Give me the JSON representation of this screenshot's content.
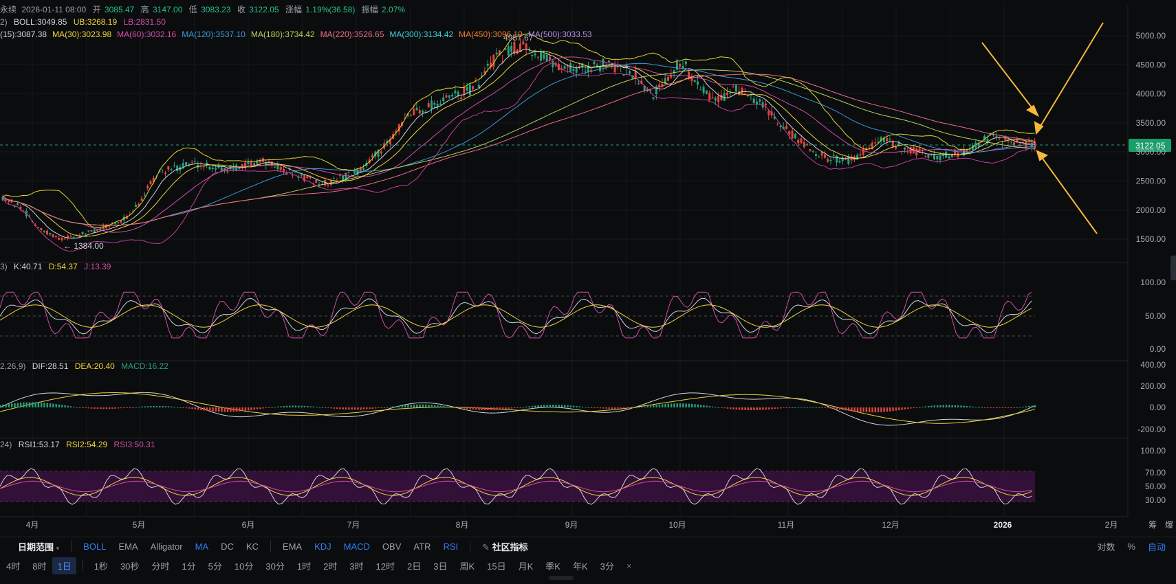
{
  "header": {
    "line1": {
      "prefix": "永续",
      "date": "2026-01-11 08:00",
      "open_label": "开",
      "open": "3085.47",
      "high_label": "高",
      "high": "3147.00",
      "low_label": "低",
      "low": "3083.23",
      "close_label": "收",
      "close": "3122.05",
      "chg_label": "涨幅",
      "chg": "1.19%(36.58)",
      "amp_label": "振幅",
      "amp": "2.07%"
    },
    "boll": {
      "prefix": "2)",
      "mid": "BOLL:3049.85",
      "ub": "UB:3268.19",
      "lb": "LB:2831.50"
    },
    "ma": [
      {
        "label": "(15):3087.38",
        "color": "#d1d4d9"
      },
      {
        "label": "MA(30):3023.98",
        "color": "#f0d43a"
      },
      {
        "label": "MA(60):3032.16",
        "color": "#d24ea8"
      },
      {
        "label": "MA(120):3537.10",
        "color": "#3a9ad9"
      },
      {
        "label": "MA(180):3734.42",
        "color": "#b9d05c"
      },
      {
        "label": "MA(220):3526.65",
        "color": "#ec6d88"
      },
      {
        "label": "MA(300):3134.42",
        "color": "#3fd0d8"
      },
      {
        "label": "MA(450):3096.10",
        "color": "#ef7d2a"
      },
      {
        "label": "MA(500):3033.53",
        "color": "#b08de3"
      }
    ]
  },
  "price_annotations": {
    "high": "4957.67",
    "low": "← 1384.00",
    "current": "3122.05"
  },
  "kdj": {
    "prefix": "3)",
    "k": "K:40.71",
    "d": "D:54.37",
    "j": "J:13.39"
  },
  "macd": {
    "prefix": "2,26,9)",
    "dif": "DIF:28.51",
    "dea": "DEA:20.40",
    "macd": "MACD:16.22"
  },
  "rsi": {
    "prefix": "24)",
    "rsi1": "RSI1:53.17",
    "rsi2": "RSI2:54.29",
    "rsi3": "RSI3:50.31"
  },
  "axes": {
    "price_ticks": [
      "5000.00",
      "4500.00",
      "4000.00",
      "3500.00",
      "3000.00",
      "2500.00",
      "2000.00",
      "1500.00"
    ],
    "kdj_ticks": [
      "100.00",
      "50.00",
      "0.00"
    ],
    "macd_ticks": [
      "400.00",
      "200.00",
      "0.00",
      "-200.00"
    ],
    "rsi_ticks": [
      "100.00",
      "70.00",
      "50.00",
      "30.00"
    ],
    "months": [
      "4月",
      "5月",
      "6月",
      "7月",
      "8月",
      "9月",
      "10月",
      "11月",
      "12月",
      "2026",
      "2月"
    ],
    "corner": [
      "筹",
      "爆"
    ]
  },
  "colors": {
    "up": "#26a17b",
    "down": "#e0463c",
    "accent": "#2f7ff5",
    "arrow": "#f5b83a",
    "rsi_band": "#3a1240",
    "price_badge": "#1a9e6a"
  },
  "toolbar1": {
    "range_label": "日期范围",
    "main_indicators": [
      "BOLL",
      "EMA",
      "Alligator",
      "MA",
      "DC",
      "KC"
    ],
    "main_active": [
      "BOLL",
      "MA"
    ],
    "sub_indicators": [
      "EMA",
      "KDJ",
      "MACD",
      "OBV",
      "ATR",
      "RSI"
    ],
    "sub_active": [
      "KDJ",
      "MACD",
      "RSI"
    ],
    "community": "社区指标",
    "right": [
      "对数",
      "%",
      "自动"
    ]
  },
  "toolbar2": {
    "intervals": [
      "4时",
      "8时",
      "1日",
      "1秒",
      "30秒",
      "分时",
      "1分",
      "5分",
      "10分",
      "30分",
      "1时",
      "2时",
      "3时",
      "12时",
      "2日",
      "3日",
      "周K",
      "15日",
      "月K",
      "季K",
      "年K",
      "3分"
    ],
    "selected": "1日",
    "close": "×"
  },
  "chart_data": {
    "type": "candlestick",
    "price_range": [
      1384.0,
      4957.67
    ],
    "last_close": 3122.05,
    "rsi_band": [
      30,
      70
    ],
    "kdj_levels": [
      20,
      50,
      80
    ]
  }
}
